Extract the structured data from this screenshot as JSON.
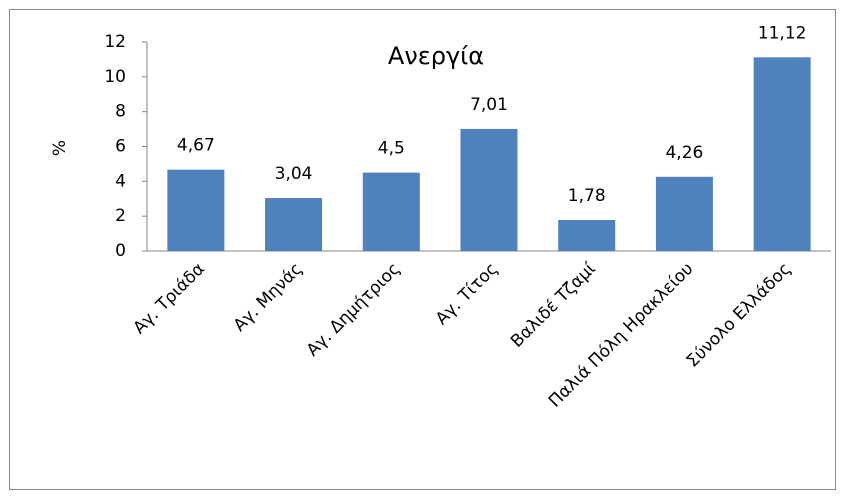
{
  "chart_data": {
    "type": "bar",
    "title": "Ανεργία",
    "y_label": "%",
    "categories": [
      "Αγ. Τριάδα",
      "Αγ. Μηνάς",
      "Αγ. Δημήτριος",
      "Αγ. Τίτος",
      "Βαλιδέ Τζαμί",
      "Παλιά Πόλη Ηρακλείου",
      "Σύνολο Ελλάδος"
    ],
    "values": [
      4.67,
      3.04,
      4.5,
      7.01,
      1.78,
      4.26,
      11.12
    ],
    "value_labels": [
      "4,67",
      "3,04",
      "4,5",
      "7,01",
      "1,78",
      "4,26",
      "11,12"
    ],
    "color": "#4f81bd",
    "ylim": [
      0,
      12
    ],
    "yticks": [
      0,
      2,
      4,
      6,
      8,
      10,
      12
    ],
    "grid": false
  }
}
